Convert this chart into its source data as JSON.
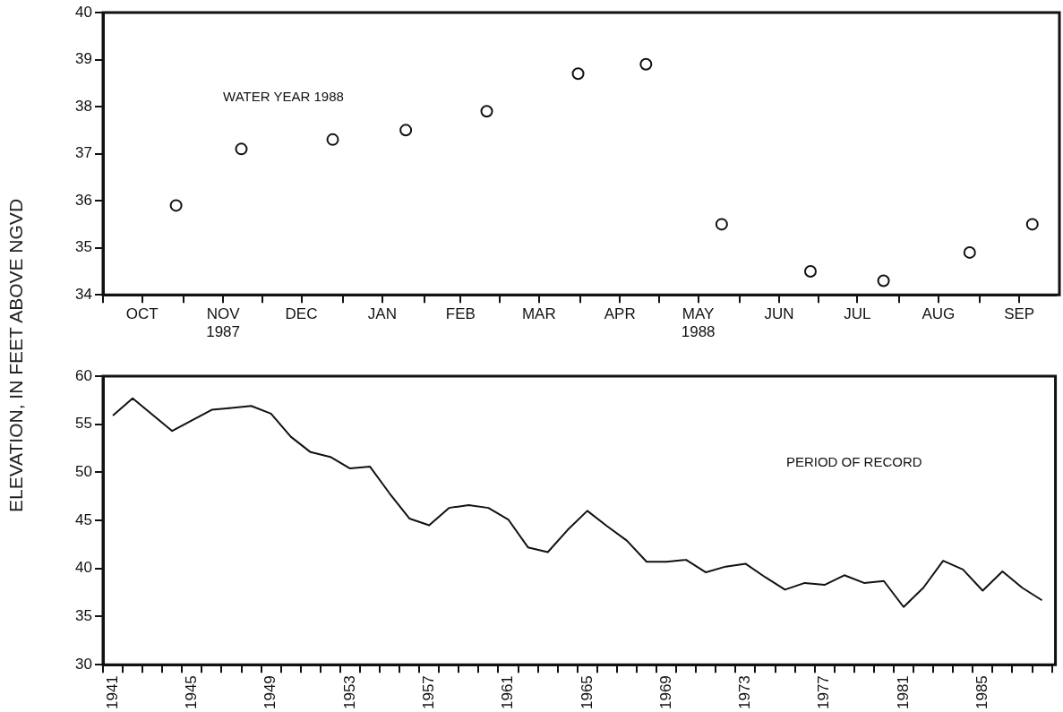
{
  "chart_data": [
    {
      "type": "scatter",
      "ylabel": "ELEVATION, IN FEET ABOVE NGVD",
      "annotations": [
        "WATER YEAR 1988"
      ],
      "x": [
        "1987-10-29",
        "1987-11-23",
        "1987-12-28",
        "1988-01-25",
        "1988-02-25",
        "1988-03-31",
        "1988-04-26",
        "1988-05-25",
        "1988-06-28",
        "1988-07-26",
        "1988-08-28",
        "1988-09-21"
      ],
      "values": [
        35.9,
        37.1,
        37.3,
        37.5,
        37.9,
        38.7,
        38.9,
        35.5,
        34.5,
        34.3,
        34.9,
        35.5
      ],
      "color": "#111111",
      "marker": "circle",
      "grid": false,
      "legend": false,
      "xlim": [
        "1987-10-01",
        "1988-09-30"
      ],
      "xticks": [
        {
          "value": "1987-10-01",
          "label": null
        },
        {
          "value": "1987-10-16",
          "label": "OCT"
        },
        {
          "value": "1987-11-01",
          "label": null
        },
        {
          "value": "1987-11-16",
          "label": "NOV\n1987"
        },
        {
          "value": "1987-12-01",
          "label": null
        },
        {
          "value": "1987-12-16",
          "label": "DEC"
        },
        {
          "value": "1988-01-01",
          "label": null
        },
        {
          "value": "1988-01-16",
          "label": "JAN"
        },
        {
          "value": "1988-02-01",
          "label": null
        },
        {
          "value": "1988-02-15",
          "label": "FEB"
        },
        {
          "value": "1988-03-01",
          "label": null
        },
        {
          "value": "1988-03-16",
          "label": "MAR"
        },
        {
          "value": "1988-04-01",
          "label": null
        },
        {
          "value": "1988-04-16",
          "label": "APR"
        },
        {
          "value": "1988-05-01",
          "label": null
        },
        {
          "value": "1988-05-16",
          "label": "MAY\n1988"
        },
        {
          "value": "1988-06-01",
          "label": null
        },
        {
          "value": "1988-06-16",
          "label": "JUN"
        },
        {
          "value": "1988-07-01",
          "label": null
        },
        {
          "value": "1988-07-16",
          "label": "JUL"
        },
        {
          "value": "1988-08-01",
          "label": null
        },
        {
          "value": "1988-08-16",
          "label": "AUG"
        },
        {
          "value": "1988-09-01",
          "label": null
        },
        {
          "value": "1988-09-16",
          "label": "SEP"
        }
      ],
      "ylim": [
        34,
        40
      ],
      "yticks": [
        34,
        35,
        36,
        37,
        38,
        39,
        40
      ]
    },
    {
      "type": "line",
      "annotations": [
        "PERIOD OF RECORD"
      ],
      "categories": [
        "1941",
        null,
        null,
        null,
        "1945",
        null,
        null,
        null,
        "1949",
        null,
        null,
        null,
        "1953",
        null,
        null,
        null,
        "1957",
        null,
        null,
        null,
        "1961",
        null,
        null,
        null,
        "1965",
        null,
        null,
        null,
        "1969",
        null,
        null,
        null,
        "1973",
        null,
        null,
        null,
        "1977",
        null,
        null,
        null,
        "1981",
        null,
        null,
        null,
        "1985",
        null,
        null,
        null
      ],
      "values": [
        55.9,
        57.7,
        56.0,
        54.3,
        55.4,
        56.5,
        56.7,
        56.9,
        56.1,
        53.7,
        52.1,
        51.6,
        50.4,
        50.6,
        47.8,
        45.2,
        44.5,
        46.3,
        46.6,
        46.3,
        45.1,
        42.2,
        41.7,
        44.0,
        46.0,
        44.4,
        42.9,
        40.7,
        40.7,
        40.9,
        39.6,
        40.2,
        40.5,
        39.1,
        37.8,
        38.5,
        38.3,
        39.3,
        38.5,
        38.7,
        36.0,
        38.0,
        40.8,
        39.9,
        37.7,
        39.7,
        38.0,
        36.7
      ],
      "color": "#111111",
      "marker": "none",
      "line_style": "solid",
      "grid": false,
      "legend": false,
      "ylim": [
        30,
        60
      ],
      "yticks": [
        30,
        35,
        40,
        45,
        50,
        55,
        60
      ]
    }
  ]
}
